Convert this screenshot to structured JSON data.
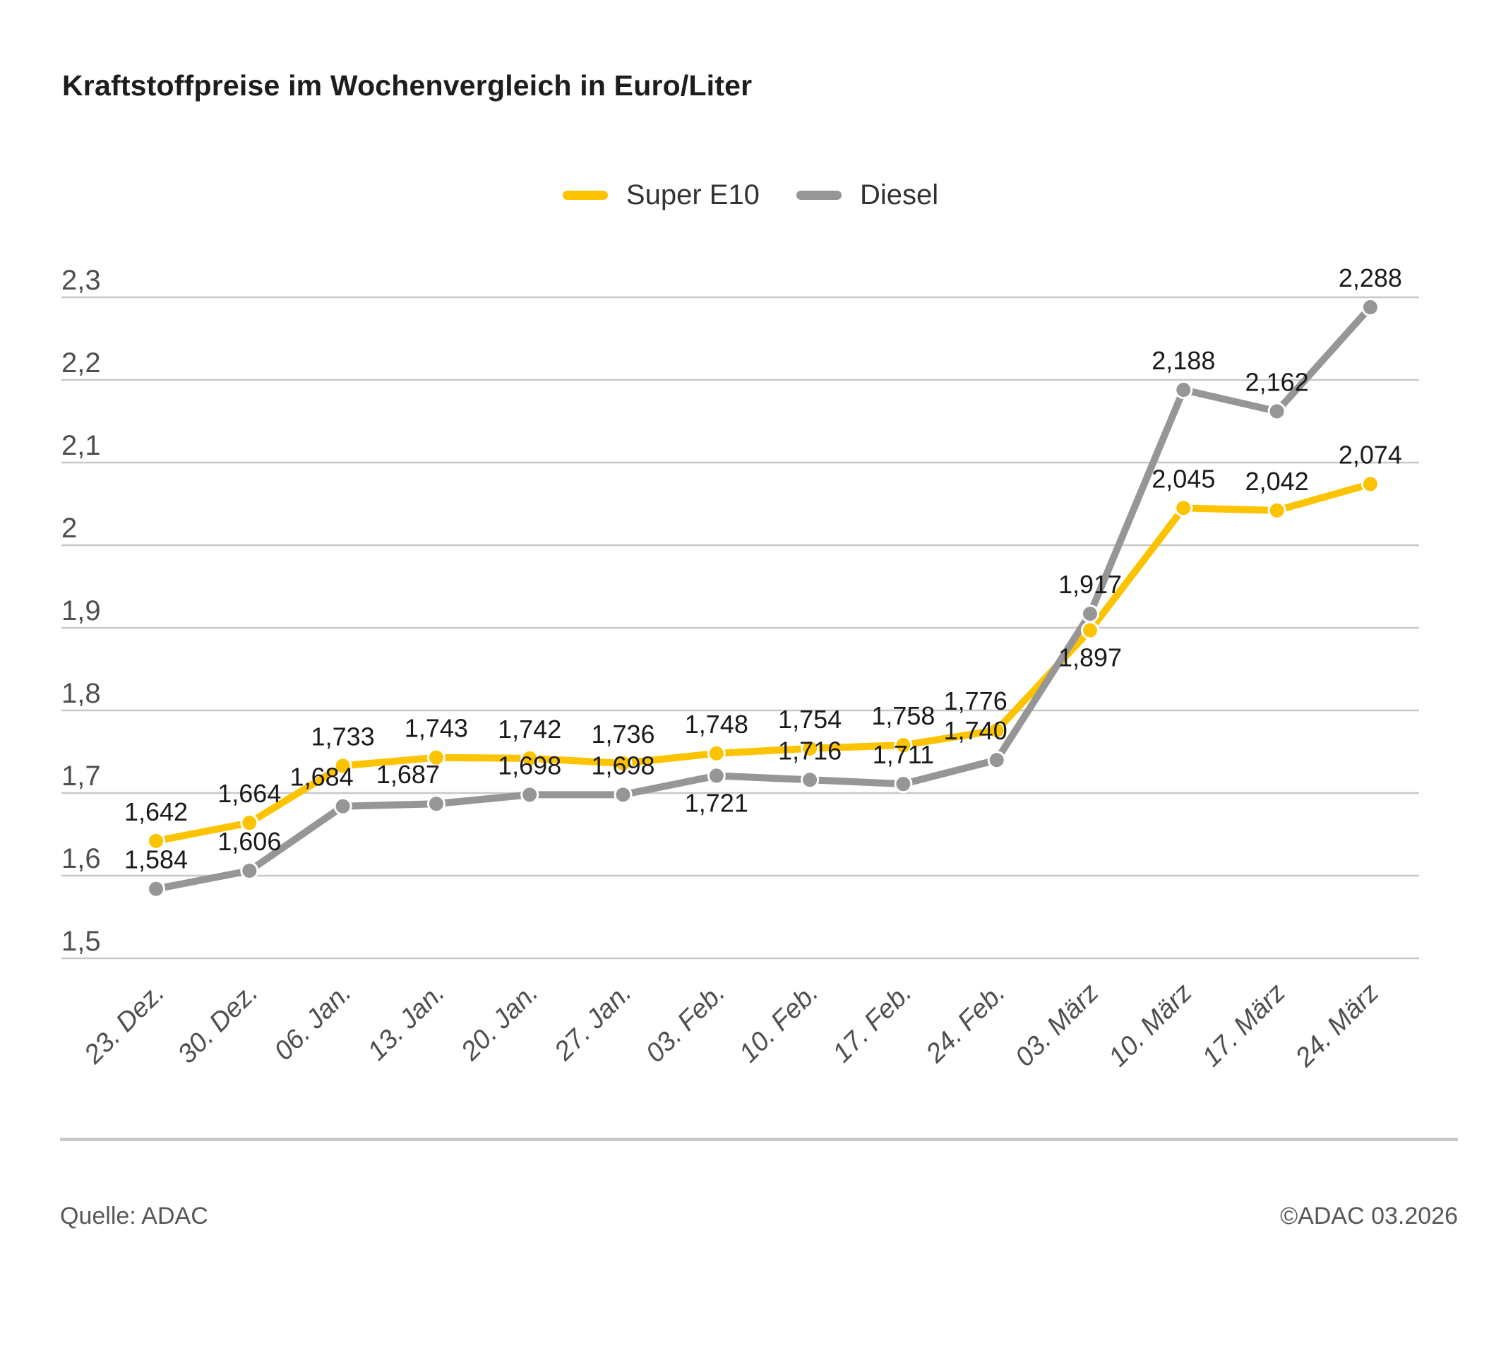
{
  "title": "Kraftstoffpreise im Wochenvergleich in Euro/Liter",
  "footer": {
    "source": "Quelle: ADAC",
    "copyright": "©ADAC 03.2026"
  },
  "colors": {
    "super_e10": "#fcc400",
    "diesel": "#969696",
    "grid": "#c8c8c8",
    "data_label": "#1a1a1a",
    "axis_label": "#4f4f4f"
  },
  "chart_data": {
    "type": "line",
    "title": "Kraftstoffpreise im Wochenvergleich in Euro/Liter",
    "xlabel": "",
    "ylabel": "Euro/Liter",
    "ylim": [
      1.5,
      2.3
    ],
    "grid": true,
    "legend_position": "top",
    "decimal_style": "german-comma",
    "categories": [
      "23. Dez.",
      "30. Dez.",
      "06. Jan.",
      "13. Jan.",
      "20. Jan.",
      "27. Jan.",
      "03. Feb.",
      "10. Feb.",
      "17. Feb.",
      "24. Feb.",
      "03. März",
      "10. März",
      "17. März",
      "24. März"
    ],
    "y_ticks": [
      {
        "value": 2.3,
        "label": "2,3"
      },
      {
        "value": 2.2,
        "label": "2,2"
      },
      {
        "value": 2.1,
        "label": "2,1"
      },
      {
        "value": 2.0,
        "label": "2"
      },
      {
        "value": 1.9,
        "label": "1,9"
      },
      {
        "value": 1.8,
        "label": "1,8"
      },
      {
        "value": 1.7,
        "label": "1,7"
      },
      {
        "value": 1.6,
        "label": "1,6"
      },
      {
        "value": 1.5,
        "label": "1,5"
      }
    ],
    "series": [
      {
        "name": "Super E10",
        "color": "#fcc400",
        "values": [
          1.642,
          1.664,
          1.733,
          1.743,
          1.742,
          1.736,
          1.748,
          1.754,
          1.758,
          1.776,
          1.897,
          2.045,
          2.042,
          2.074
        ],
        "label_below": [
          10
        ],
        "label_dx": {
          "9": -30
        }
      },
      {
        "name": "Diesel",
        "color": "#969696",
        "values": [
          1.584,
          1.606,
          1.684,
          1.687,
          1.698,
          1.698,
          1.721,
          1.716,
          1.711,
          1.74,
          1.917,
          2.188,
          2.162,
          2.288
        ],
        "label_below": [
          6
        ],
        "label_dx": {
          "2": -30,
          "3": -40,
          "9": -30
        }
      }
    ]
  }
}
